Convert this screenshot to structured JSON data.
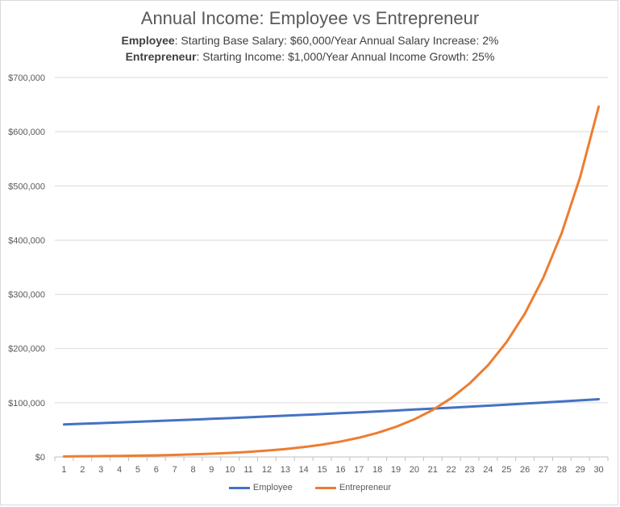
{
  "chart_data": {
    "type": "line",
    "title": "Annual Income: Employee vs Entrepreneur",
    "subtitle_lines": [
      {
        "bold": "Employee",
        "rest": ": Starting Base Salary: $60,000/Year  Annual Salary Increase: 2%"
      },
      {
        "bold": "Entrepreneur",
        "rest": ": Starting Income: $1,000/Year  Annual Income Growth:  25%"
      }
    ],
    "xlabel": "",
    "ylabel": "",
    "ylim": [
      0,
      700000
    ],
    "y_ticks": [
      0,
      100000,
      200000,
      300000,
      400000,
      500000,
      600000,
      700000
    ],
    "y_tick_labels": [
      "$0",
      "$100,000",
      "$200,000",
      "$300,000",
      "$400,000",
      "$500,000",
      "$600,000",
      "$700,000"
    ],
    "x": [
      1,
      2,
      3,
      4,
      5,
      6,
      7,
      8,
      9,
      10,
      11,
      12,
      13,
      14,
      15,
      16,
      17,
      18,
      19,
      20,
      21,
      22,
      23,
      24,
      25,
      26,
      27,
      28,
      29,
      30
    ],
    "grid": "horizontal",
    "legend_position": "bottom",
    "series": [
      {
        "name": "Employee",
        "color": "#4472c4",
        "values": [
          60000,
          61200,
          62424,
          63672,
          64946,
          66245,
          67570,
          68921,
          70300,
          71706,
          73140,
          74602,
          76095,
          77616,
          79169,
          80752,
          82367,
          84014,
          85695,
          87409,
          89157,
          90940,
          92759,
          94614,
          96506,
          98436,
          100405,
          102413,
          104461,
          106551
        ]
      },
      {
        "name": "Entrepreneur",
        "color": "#ed7d31",
        "values": [
          1000,
          1250,
          1563,
          1953,
          2441,
          3052,
          3815,
          4768,
          5960,
          7451,
          9313,
          11642,
          14552,
          18190,
          22737,
          28422,
          35527,
          44409,
          55511,
          69389,
          86736,
          108420,
          135525,
          169407,
          211758,
          264698,
          330872,
          413590,
          516988,
          646235
        ]
      }
    ]
  }
}
